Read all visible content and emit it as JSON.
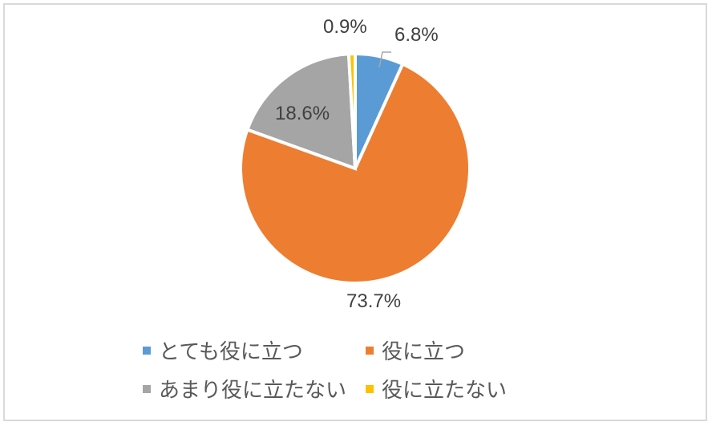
{
  "chart_data": {
    "type": "pie",
    "title": "",
    "categories": [
      "とても役に立つ",
      "役に立つ",
      "あまり役に立たない",
      "役に立たない"
    ],
    "values": [
      6.8,
      73.7,
      18.6,
      0.9
    ],
    "labels": [
      "6.8%",
      "73.7%",
      "18.6%",
      "0.9%"
    ],
    "colors": [
      "#5b9bd5",
      "#ed7d31",
      "#a5a5a5",
      "#ffc000"
    ],
    "start_angle_deg": 0,
    "direction": "clockwise",
    "legend_position": "bottom"
  },
  "legend": {
    "items": [
      {
        "label": "とても役に立つ",
        "color": "#5b9bd5"
      },
      {
        "label": "役に立つ",
        "color": "#ed7d31"
      },
      {
        "label": "あまり役に立たない",
        "color": "#a5a5a5"
      },
      {
        "label": "役に立たない",
        "color": "#ffc000"
      }
    ]
  }
}
